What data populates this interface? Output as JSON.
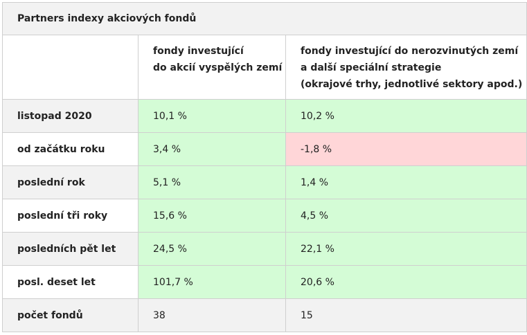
{
  "table": {
    "title": "Partners indexy akciových fondů",
    "columns": [
      {
        "lines": [
          "fondy investující",
          "do akcií vyspělých zemí"
        ]
      },
      {
        "lines": [
          "fondy investující do nerozvinutých zemí",
          "a další speciální strategie",
          "(okrajové trhy, jednotlivé sektory apod.)"
        ]
      }
    ],
    "rows": [
      {
        "label": "listopad 2020",
        "values": [
          "10,1 %",
          "10,2 %"
        ],
        "status": [
          "positive",
          "positive"
        ]
      },
      {
        "label": "od začátku roku",
        "values": [
          "3,4 %",
          "-1,8 %"
        ],
        "status": [
          "positive",
          "negative"
        ]
      },
      {
        "label": "poslední rok",
        "values": [
          "5,1 %",
          "1,4 %"
        ],
        "status": [
          "positive",
          "positive"
        ]
      },
      {
        "label": "poslední tři roky",
        "values": [
          "15,6 %",
          "4,5 %"
        ],
        "status": [
          "positive",
          "positive"
        ]
      },
      {
        "label": "posledních pět let",
        "values": [
          "24,5 %",
          "22,1 %"
        ],
        "status": [
          "positive",
          "positive"
        ]
      },
      {
        "label": "posl. deset let",
        "values": [
          "101,7 %",
          "20,6 %"
        ],
        "status": [
          "positive",
          "positive"
        ]
      },
      {
        "label": "počet fondů",
        "values": [
          "38",
          "15"
        ],
        "status": [
          "neutral",
          "neutral"
        ]
      }
    ]
  },
  "colors": {
    "positive": "#d4fcd6",
    "negative": "#ffd6d8",
    "header_gray": "#f2f2f2",
    "border": "#cfcfcf"
  }
}
